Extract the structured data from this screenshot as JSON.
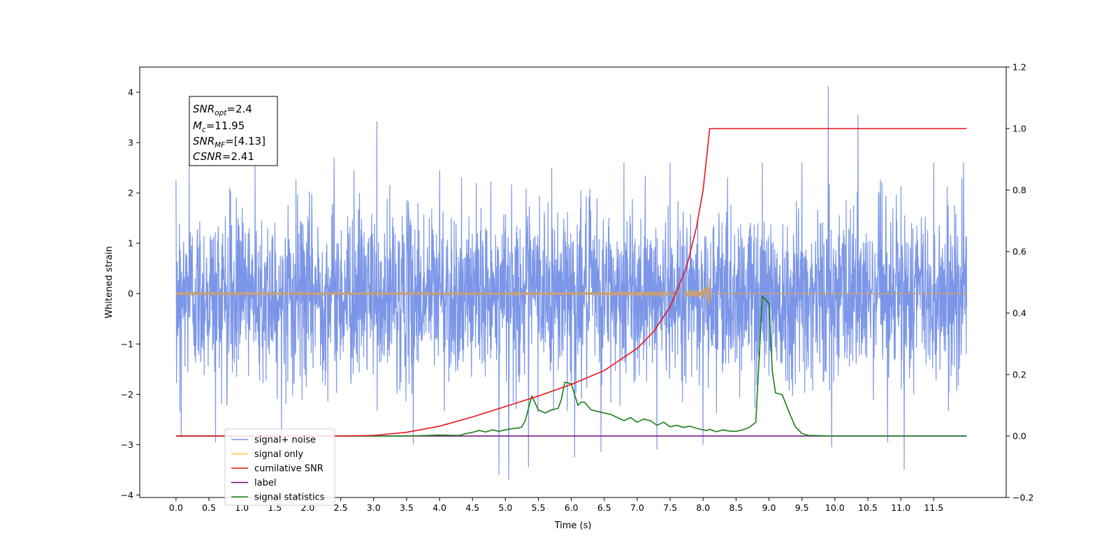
{
  "chart_data": {
    "type": "line",
    "xlabel": "Time (s)",
    "ylabel": "Whitened strain",
    "xlim": [
      -0.55,
      12.6
    ],
    "ylim": [
      -4.05,
      4.5
    ],
    "y2lim": [
      -0.2,
      1.2
    ],
    "xticks": [
      "0.0",
      "0.5",
      "1.0",
      "1.5",
      "2.0",
      "2.5",
      "3.0",
      "3.5",
      "4.0",
      "4.5",
      "5.0",
      "5.5",
      "6.0",
      "6.5",
      "7.0",
      "7.5",
      "8.0",
      "8.5",
      "9.0",
      "9.5",
      "10.0",
      "10.5",
      "11.0",
      "11.5"
    ],
    "xtick_values": [
      0,
      0.5,
      1,
      1.5,
      2,
      2.5,
      3,
      3.5,
      4,
      4.5,
      5,
      5.5,
      6,
      6.5,
      7,
      7.5,
      8,
      8.5,
      9,
      9.5,
      10,
      10.5,
      11,
      11.5
    ],
    "yticks": [
      "−4",
      "−3",
      "−2",
      "−1",
      "0",
      "1",
      "2",
      "3",
      "4"
    ],
    "ytick_values": [
      -4,
      -3,
      -2,
      -1,
      0,
      1,
      2,
      3,
      4
    ],
    "y2ticks": [
      "−0.2",
      "0.0",
      "0.2",
      "0.4",
      "0.6",
      "0.8",
      "1.0",
      "1.2"
    ],
    "y2tick_values": [
      -0.2,
      0,
      0.2,
      0.4,
      0.6,
      0.8,
      1.0,
      1.2
    ],
    "annotation": {
      "snr_opt": {
        "base": "SNR",
        "sub": "opt",
        "value": "=2.4"
      },
      "mc": {
        "base": "M",
        "sub": "c",
        "value": "=11.95"
      },
      "snr_mf": {
        "base": "SNR",
        "sub": "MF",
        "value": "=[4.13]"
      },
      "csnr": {
        "base": "CSNR",
        "value": "=2.41"
      }
    },
    "legend": {
      "placement": "lower-left",
      "entries": [
        {
          "label": "signal+ noise",
          "color": "#7b96e8"
        },
        {
          "label": "signal only",
          "color": "#ffc04d"
        },
        {
          "label": "cumilative SNR",
          "color": "#e8141c"
        },
        {
          "label": "label",
          "color": "#6a0d74"
        },
        {
          "label": "signal statistics",
          "color": "#1a7d1a"
        }
      ]
    },
    "series": [
      {
        "name": "signal+ noise",
        "axis": "left",
        "color": "#7b96e8",
        "t_range": [
          0,
          12.0
        ],
        "envelope": [
          -2.0,
          2.0
        ],
        "peaks": [
          [
            0.08,
            -2.85
          ],
          [
            0.6,
            -2.95
          ],
          [
            1.6,
            -2.85
          ],
          [
            2.4,
            2.7
          ],
          [
            3.05,
            3.42
          ],
          [
            3.05,
            -3.15
          ],
          [
            3.6,
            -3.0
          ],
          [
            4.0,
            2.45
          ],
          [
            4.9,
            -3.6
          ],
          [
            5.05,
            -3.7
          ],
          [
            5.35,
            -3.45
          ],
          [
            5.7,
            2.5
          ],
          [
            6.05,
            -3.25
          ],
          [
            6.45,
            -3.15
          ],
          [
            6.8,
            2.6
          ],
          [
            7.3,
            -3.1
          ],
          [
            7.5,
            2.6
          ],
          [
            8.0,
            -3.0
          ],
          [
            8.9,
            2.6
          ],
          [
            9.5,
            2.6
          ],
          [
            9.9,
            4.12
          ],
          [
            9.95,
            -3.05
          ],
          [
            10.35,
            3.55
          ],
          [
            10.8,
            -2.95
          ],
          [
            11.05,
            -3.5
          ],
          [
            11.5,
            2.6
          ],
          [
            11.95,
            2.6
          ],
          [
            0.2,
            2.6
          ],
          [
            1.2,
            2.6
          ],
          [
            2.7,
            2.45
          ]
        ]
      },
      {
        "name": "signal only",
        "axis": "left",
        "color": "#c8a078",
        "description_x_end": 8.1,
        "chirp_end": 8.1,
        "chirp_max_amplitude": 0.35
      },
      {
        "name": "cumilative SNR",
        "axis": "right",
        "color": "#e8141c",
        "x": [
          0,
          2.5,
          3.0,
          3.5,
          4.0,
          4.5,
          5.0,
          5.5,
          6.0,
          6.5,
          7.0,
          7.25,
          7.5,
          7.75,
          7.9,
          8.0,
          8.05,
          8.08,
          8.1,
          9.0,
          10.0,
          11.0,
          12.0
        ],
        "values": [
          0.0,
          0.0,
          0.002,
          0.012,
          0.032,
          0.062,
          0.096,
          0.13,
          0.168,
          0.213,
          0.285,
          0.34,
          0.42,
          0.55,
          0.68,
          0.8,
          0.9,
          0.96,
          1.0,
          1.0,
          1.0,
          1.0,
          1.0
        ]
      },
      {
        "name": "label",
        "axis": "right",
        "color": "#6a0d74",
        "x": [
          0,
          12.0
        ],
        "values": [
          0.0,
          0.0
        ]
      },
      {
        "name": "signal statistics",
        "axis": "right",
        "color": "#1a7d1a",
        "x": [
          0,
          3.5,
          4.0,
          4.3,
          4.4,
          4.5,
          4.6,
          4.7,
          4.8,
          4.9,
          5.0,
          5.1,
          5.2,
          5.25,
          5.3,
          5.35,
          5.4,
          5.5,
          5.6,
          5.7,
          5.8,
          5.85,
          5.9,
          6.0,
          6.1,
          6.15,
          6.2,
          6.3,
          6.4,
          6.5,
          6.6,
          6.7,
          6.8,
          6.9,
          7.0,
          7.1,
          7.2,
          7.3,
          7.4,
          7.5,
          7.6,
          7.7,
          7.8,
          7.9,
          8.0,
          8.05,
          8.1,
          8.2,
          8.3,
          8.4,
          8.5,
          8.6,
          8.7,
          8.8,
          8.9,
          9.0,
          9.05,
          9.1,
          9.2,
          9.3,
          9.4,
          9.5,
          9.6,
          10.0,
          11.0,
          12.0
        ],
        "values": [
          0.0,
          0.0,
          0.003,
          0.002,
          0.008,
          0.012,
          0.018,
          0.013,
          0.02,
          0.015,
          0.02,
          0.024,
          0.026,
          0.03,
          0.05,
          0.09,
          0.13,
          0.085,
          0.075,
          0.085,
          0.09,
          0.12,
          0.175,
          0.17,
          0.1,
          0.11,
          0.11,
          0.085,
          0.08,
          0.075,
          0.07,
          0.06,
          0.05,
          0.06,
          0.045,
          0.055,
          0.05,
          0.035,
          0.045,
          0.03,
          0.035,
          0.028,
          0.032,
          0.025,
          0.02,
          0.018,
          0.022,
          0.014,
          0.02,
          0.016,
          0.015,
          0.02,
          0.028,
          0.045,
          0.455,
          0.43,
          0.21,
          0.14,
          0.135,
          0.08,
          0.03,
          0.008,
          0.002,
          0.0,
          0.0,
          0.0
        ]
      }
    ]
  }
}
